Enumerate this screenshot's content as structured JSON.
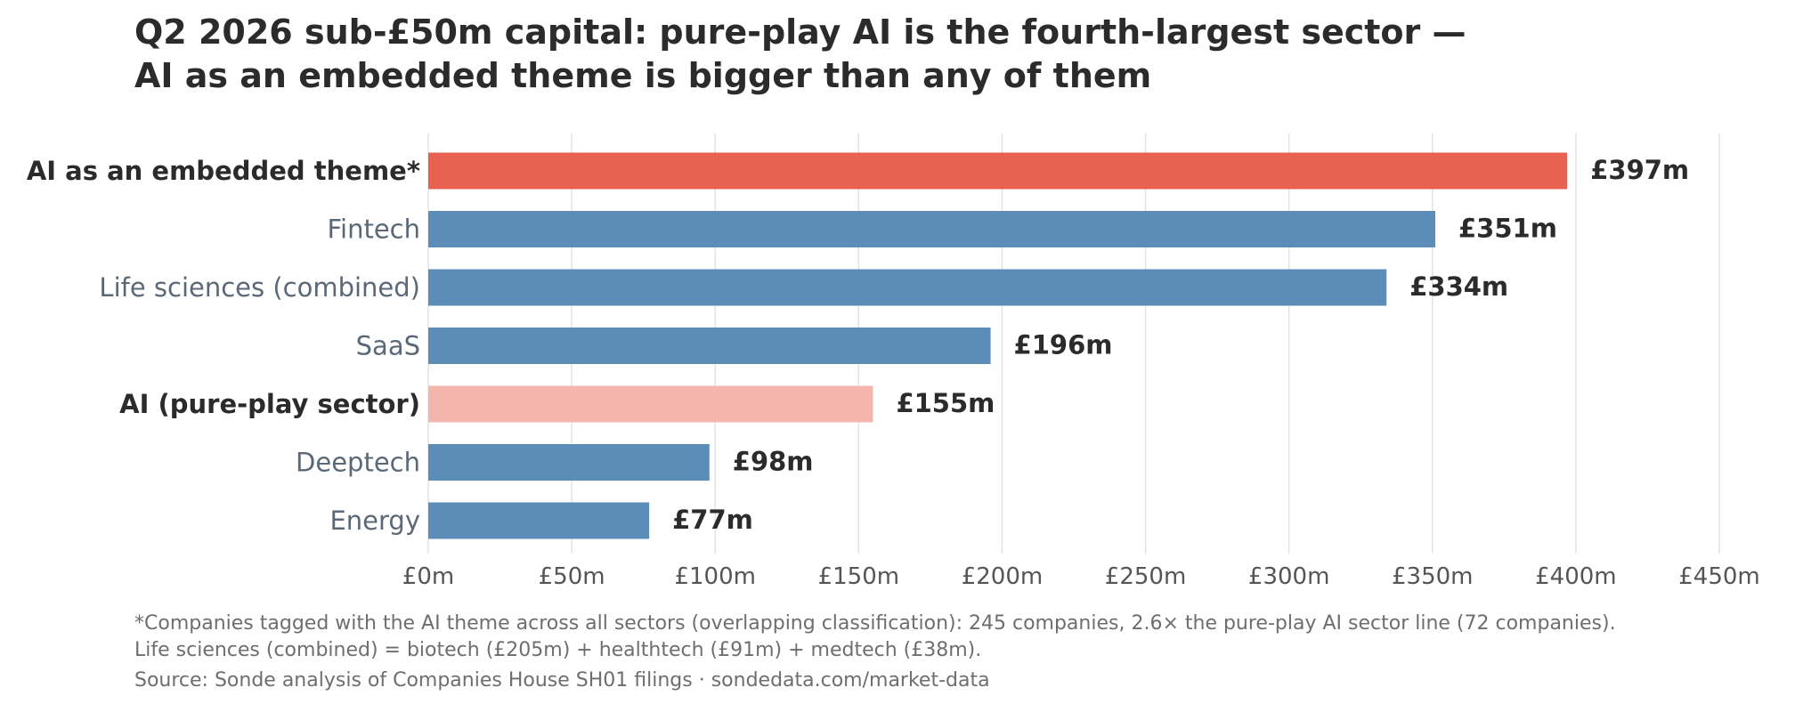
{
  "chart_data": {
    "type": "bar",
    "orientation": "horizontal",
    "title": "Q2 2026 sub-£50m capital: pure-play AI is the fourth-largest sector — AI as an embedded theme is bigger than any of them",
    "title_lines": [
      "Q2 2026 sub-£50m capital: pure-play AI is the fourth-largest sector —",
      "AI as an embedded theme is bigger than any of them"
    ],
    "categories": [
      "AI as an embedded theme*",
      "Fintech",
      "Life sciences (combined)",
      "SaaS",
      "AI (pure-play sector)",
      "Deeptech",
      "Energy"
    ],
    "values": [
      397,
      351,
      334,
      196,
      155,
      98,
      77
    ],
    "value_labels": [
      "£397m",
      "£351m",
      "£334m",
      "£196m",
      "£155m",
      "£98m",
      "£77m"
    ],
    "highlight": [
      "primary",
      "normal",
      "normal",
      "normal",
      "secondary",
      "normal",
      "normal"
    ],
    "bold_categories": [
      true,
      false,
      false,
      false,
      true,
      false,
      false
    ],
    "colors": {
      "primary": "#e8604f",
      "secondary": "#f4b5ac",
      "normal": "#5b8db8",
      "label_bold": "#2b2b2b",
      "label_normal": "#5a6878",
      "tick": "#555555",
      "grid": "#e3e3e3"
    },
    "xlim": [
      0,
      450
    ],
    "xticks": [
      0,
      50,
      100,
      150,
      200,
      250,
      300,
      350,
      400,
      450
    ],
    "xtick_labels": [
      "£0m",
      "£50m",
      "£100m",
      "£150m",
      "£200m",
      "£250m",
      "£300m",
      "£350m",
      "£400m",
      "£450m"
    ],
    "xlabel": "",
    "ylabel": "",
    "grid": "vertical"
  },
  "footnotes": [
    "*Companies tagged with the AI theme across all sectors (overlapping classification): 245 companies, 2.6× the pure-play AI sector line (72 companies).",
    "Life sciences (combined) = biotech (£205m) + healthtech (£91m) + medtech (£38m)."
  ],
  "source": "Source: Sonde analysis of Companies House SH01 filings · sondedata.com/market-data"
}
